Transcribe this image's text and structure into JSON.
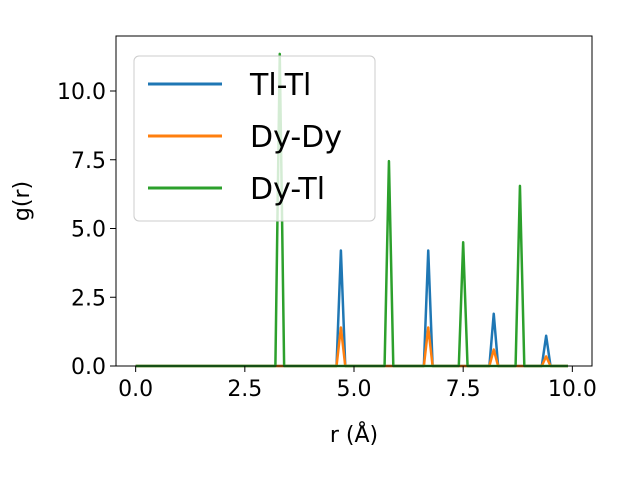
{
  "chart_data": {
    "type": "line",
    "title": "",
    "xlabel": "r (Å)",
    "ylabel": "g(r)",
    "xlim": [
      -0.45,
      10.45
    ],
    "ylim": [
      0,
      12
    ],
    "xticks": [
      0.0,
      2.5,
      5.0,
      7.5,
      10.0
    ],
    "xtick_labels": [
      "0.0",
      "2.5",
      "5.0",
      "7.5",
      "10.0"
    ],
    "yticks": [
      0.0,
      2.5,
      5.0,
      7.5,
      10.0
    ],
    "ytick_labels": [
      "0.0",
      "2.5",
      "5.0",
      "7.5",
      "10.0"
    ],
    "grid": false,
    "legend": {
      "position": "top-left"
    },
    "series": [
      {
        "name": "Tl-Tl",
        "color": "#1f77b4",
        "x": [
          0.0,
          4.6,
          4.7,
          4.8,
          6.6,
          6.7,
          6.8,
          8.1,
          8.2,
          8.3,
          9.3,
          9.4,
          9.5,
          9.9
        ],
        "y": [
          0,
          0,
          4.2,
          0,
          0,
          4.2,
          0,
          0,
          1.9,
          0,
          0,
          1.1,
          0,
          0
        ]
      },
      {
        "name": "Dy-Dy",
        "color": "#ff7f0e",
        "x": [
          0.0,
          4.6,
          4.7,
          4.8,
          6.6,
          6.7,
          6.8,
          8.1,
          8.2,
          8.3,
          9.3,
          9.4,
          9.5,
          9.9
        ],
        "y": [
          0,
          0,
          1.4,
          0,
          0,
          1.4,
          0,
          0,
          0.6,
          0,
          0,
          0.35,
          0,
          0
        ]
      },
      {
        "name": "Dy-Tl",
        "color": "#2ca02c",
        "x": [
          0.0,
          3.2,
          3.3,
          3.4,
          5.7,
          5.8,
          5.9,
          7.4,
          7.5,
          7.6,
          8.7,
          8.8,
          8.9,
          9.9
        ],
        "y": [
          0,
          0,
          11.35,
          0,
          0,
          7.45,
          0,
          0,
          4.5,
          0,
          0,
          6.55,
          0,
          0
        ]
      }
    ]
  }
}
